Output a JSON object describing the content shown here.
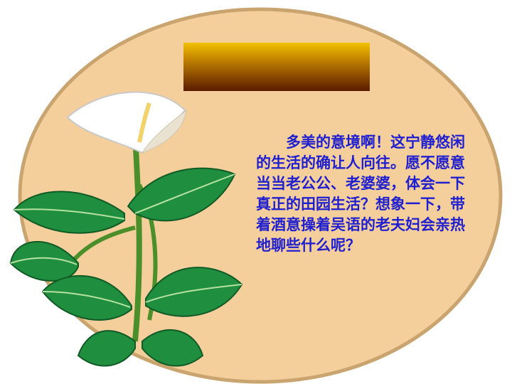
{
  "slide": {
    "title": "",
    "body_text": "多美的意境啊！这宁静悠闲的生活的确让人向往。愿不愿意当当老公公、老婆婆，体会一下真正的田园生活？想象一下，带着酒意操着吴语的老夫妇会亲热地聊些什么呢？"
  },
  "colors": {
    "circle_fill": "#f4cf9c",
    "circle_border": "#c9a46e",
    "text": "#1f1fcf",
    "leaf": "#1f8f3f",
    "flower": "#ffffff"
  },
  "icons": {
    "illustration": "calla-lily-plant"
  }
}
